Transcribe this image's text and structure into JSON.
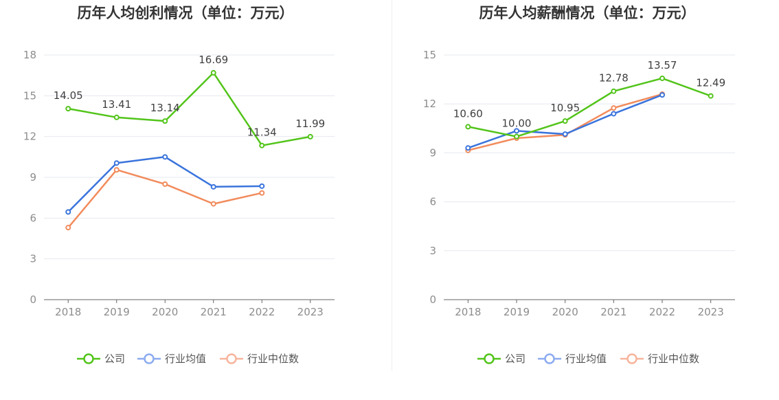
{
  "colors": {
    "company": "#52c41a",
    "industry_avg": "#3a74dc",
    "industry_median": "#f28b5c",
    "legend_avg": "#8cabf0",
    "legend_median": "#f7b49c",
    "grid": "#e5e8ef",
    "axis": "#666666"
  },
  "legend": {
    "company": "公司",
    "industry_avg": "行业均值",
    "industry_median": "行业中位数"
  },
  "chart_data": [
    {
      "type": "line",
      "title": "历年人均创利情况（单位：万元）",
      "categories": [
        "2018",
        "2019",
        "2020",
        "2021",
        "2022",
        "2023"
      ],
      "ylim": [
        0,
        18
      ],
      "yticks": [
        "0",
        "3",
        "6",
        "9",
        "12",
        "15",
        "18"
      ],
      "grid": true,
      "legend_position": "bottom",
      "series": [
        {
          "name": "公司",
          "values": [
            14.05,
            13.41,
            13.14,
            16.69,
            11.34,
            11.99
          ],
          "labels": [
            "14.05",
            "13.41",
            "13.14",
            "16.69",
            "11.34",
            "11.99"
          ]
        },
        {
          "name": "行业均值",
          "values": [
            6.45,
            10.05,
            10.5,
            8.3,
            8.35,
            null
          ]
        },
        {
          "name": "行业中位数",
          "values": [
            5.3,
            9.55,
            8.5,
            7.05,
            7.85,
            null
          ]
        }
      ]
    },
    {
      "type": "line",
      "title": "历年人均薪酬情况（单位：万元）",
      "categories": [
        "2018",
        "2019",
        "2020",
        "2021",
        "2022",
        "2023"
      ],
      "ylim": [
        0,
        15
      ],
      "yticks": [
        "0",
        "3",
        "6",
        "9",
        "12",
        "15"
      ],
      "grid": true,
      "legend_position": "bottom",
      "series": [
        {
          "name": "公司",
          "values": [
            10.6,
            10.0,
            10.95,
            12.78,
            13.57,
            12.49
          ],
          "labels": [
            "10.60",
            "10.00",
            "10.95",
            "12.78",
            "13.57",
            "12.49"
          ]
        },
        {
          "name": "行业均值",
          "values": [
            9.3,
            10.35,
            10.15,
            11.4,
            12.55,
            null
          ]
        },
        {
          "name": "行业中位数",
          "values": [
            9.15,
            9.9,
            10.1,
            11.75,
            12.6,
            null
          ]
        }
      ]
    }
  ]
}
